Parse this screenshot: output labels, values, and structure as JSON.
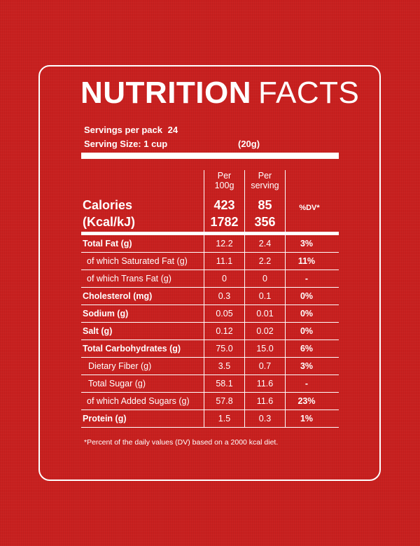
{
  "title": {
    "bold": "NUTRITION",
    "regular": "FACTS"
  },
  "servings": {
    "per_pack_label": "Servings per pack",
    "per_pack_value": "24",
    "size_label": "Serving Size: 1 cup",
    "size_value": "(20g)"
  },
  "columns": {
    "per100g": "Per\n100g",
    "per_serving": "Per\nserving",
    "dv": "%DV*"
  },
  "calories": {
    "label1": "Calories",
    "label2": "(Kcal/kJ)",
    "per100g_kcal": "423",
    "per100g_kj": "1782",
    "serving_kcal": "85",
    "serving_kj": "356"
  },
  "rows": [
    {
      "label": "Total Fat (g)",
      "per100g": "12.2",
      "serving": "2.4",
      "dv": "3%",
      "bold": true,
      "indent": 0
    },
    {
      "label": "of which Saturated Fat (g)",
      "per100g": "11.1",
      "serving": "2.2",
      "dv": "11%",
      "bold": false,
      "indent": 2
    },
    {
      "label": "of which Trans Fat (g)",
      "per100g": "0",
      "serving": "0",
      "dv": "-",
      "bold": false,
      "indent": 2
    },
    {
      "label": "Cholesterol (mg)",
      "per100g": "0.3",
      "serving": "0.1",
      "dv": "0%",
      "bold": true,
      "indent": 0
    },
    {
      "label": "Sodium (g)",
      "per100g": "0.05",
      "serving": "0.01",
      "dv": "0%",
      "bold": true,
      "indent": 0
    },
    {
      "label": "Salt (g)",
      "per100g": "0.12",
      "serving": "0.02",
      "dv": "0%",
      "bold": true,
      "indent": 0
    },
    {
      "label": "Total Carbohydrates (g)",
      "per100g": "75.0",
      "serving": "15.0",
      "dv": "6%",
      "bold": true,
      "indent": 0
    },
    {
      "label": "Dietary Fiber (g)",
      "per100g": "3.5",
      "serving": "0.7",
      "dv": "3%",
      "bold": false,
      "indent": 1
    },
    {
      "label": "Total Sugar (g)",
      "per100g": "58.1",
      "serving": "11.6",
      "dv": "-",
      "bold": false,
      "indent": 1
    },
    {
      "label": "of which Added Sugars (g)",
      "per100g": "57.8",
      "serving": "11.6",
      "dv": "23%",
      "bold": false,
      "indent": 2
    },
    {
      "label": "Protein (g)",
      "per100g": "1.5",
      "serving": "0.3",
      "dv": "1%",
      "bold": true,
      "indent": 0
    }
  ],
  "footnote": "*Percent of the daily values (DV) based on a 2000 kcal diet.",
  "colors": {
    "background": "#c8201f",
    "foreground": "#ffffff"
  }
}
